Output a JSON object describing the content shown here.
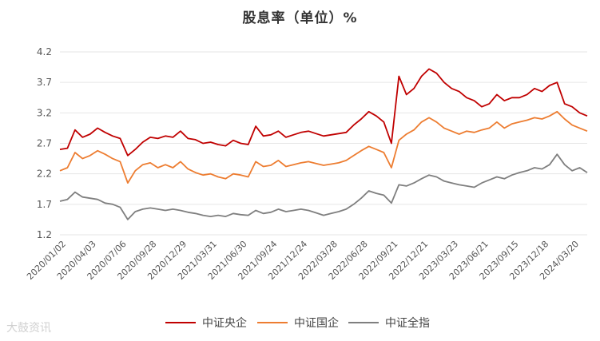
{
  "chart_data": {
    "type": "line",
    "title": "股息率（单位）%",
    "ylim": [
      1.2,
      4.2
    ],
    "yticks": [
      "4.2",
      "3.7",
      "3.2",
      "2.7",
      "2.2",
      "1.7",
      "1.2"
    ],
    "xlabels": [
      "2020/01/02",
      "2020/04/03",
      "2020/07/06",
      "2020/09/28",
      "2020/12/29",
      "2021/03/31",
      "2021/06/30",
      "2021/09/24",
      "2021/12/24",
      "2022/03/28",
      "2022/06/28",
      "2022/09/21",
      "2022/12/21",
      "2023/03/23",
      "2023/06/21",
      "2023/09/15",
      "2023/12/18",
      "2024/03/20"
    ],
    "grid": true,
    "legend_position": "bottom",
    "series": [
      {
        "name": "中证央企",
        "color": "#C00000",
        "values": [
          2.6,
          2.62,
          2.92,
          2.8,
          2.85,
          2.95,
          2.88,
          2.82,
          2.78,
          2.5,
          2.6,
          2.72,
          2.8,
          2.78,
          2.82,
          2.8,
          2.9,
          2.78,
          2.76,
          2.7,
          2.72,
          2.68,
          2.66,
          2.75,
          2.7,
          2.68,
          2.98,
          2.82,
          2.84,
          2.9,
          2.8,
          2.84,
          2.88,
          2.9,
          2.86,
          2.82,
          2.84,
          2.86,
          2.88,
          3.0,
          3.1,
          3.22,
          3.15,
          3.05,
          2.7,
          3.8,
          3.5,
          3.6,
          3.8,
          3.92,
          3.85,
          3.7,
          3.6,
          3.55,
          3.45,
          3.4,
          3.3,
          3.35,
          3.5,
          3.4,
          3.45,
          3.45,
          3.5,
          3.6,
          3.55,
          3.65,
          3.7,
          3.35,
          3.3,
          3.2,
          3.15
        ]
      },
      {
        "name": "中证国企",
        "color": "#ED7D31",
        "values": [
          2.25,
          2.3,
          2.55,
          2.45,
          2.5,
          2.58,
          2.52,
          2.45,
          2.4,
          2.05,
          2.25,
          2.35,
          2.38,
          2.3,
          2.35,
          2.3,
          2.4,
          2.28,
          2.22,
          2.18,
          2.2,
          2.15,
          2.12,
          2.2,
          2.18,
          2.15,
          2.4,
          2.32,
          2.34,
          2.42,
          2.32,
          2.35,
          2.38,
          2.4,
          2.37,
          2.34,
          2.36,
          2.38,
          2.42,
          2.5,
          2.58,
          2.65,
          2.6,
          2.55,
          2.3,
          2.75,
          2.85,
          2.92,
          3.05,
          3.12,
          3.05,
          2.95,
          2.9,
          2.85,
          2.9,
          2.88,
          2.92,
          2.95,
          3.05,
          2.95,
          3.02,
          3.05,
          3.08,
          3.12,
          3.1,
          3.15,
          3.22,
          3.1,
          3.0,
          2.95,
          2.9
        ]
      },
      {
        "name": "中证全指",
        "color": "#7F7F7F",
        "values": [
          1.75,
          1.78,
          1.9,
          1.82,
          1.8,
          1.78,
          1.72,
          1.7,
          1.65,
          1.45,
          1.58,
          1.62,
          1.64,
          1.62,
          1.6,
          1.62,
          1.6,
          1.57,
          1.55,
          1.52,
          1.5,
          1.52,
          1.5,
          1.55,
          1.53,
          1.52,
          1.6,
          1.55,
          1.57,
          1.62,
          1.58,
          1.6,
          1.62,
          1.6,
          1.56,
          1.52,
          1.55,
          1.58,
          1.62,
          1.7,
          1.8,
          1.92,
          1.88,
          1.85,
          1.72,
          2.02,
          2.0,
          2.05,
          2.12,
          2.18,
          2.15,
          2.08,
          2.05,
          2.02,
          2.0,
          1.98,
          2.05,
          2.1,
          2.15,
          2.12,
          2.18,
          2.22,
          2.25,
          2.3,
          2.28,
          2.35,
          2.52,
          2.35,
          2.25,
          2.3,
          2.22
        ]
      }
    ]
  },
  "watermark": "大鼓资讯"
}
